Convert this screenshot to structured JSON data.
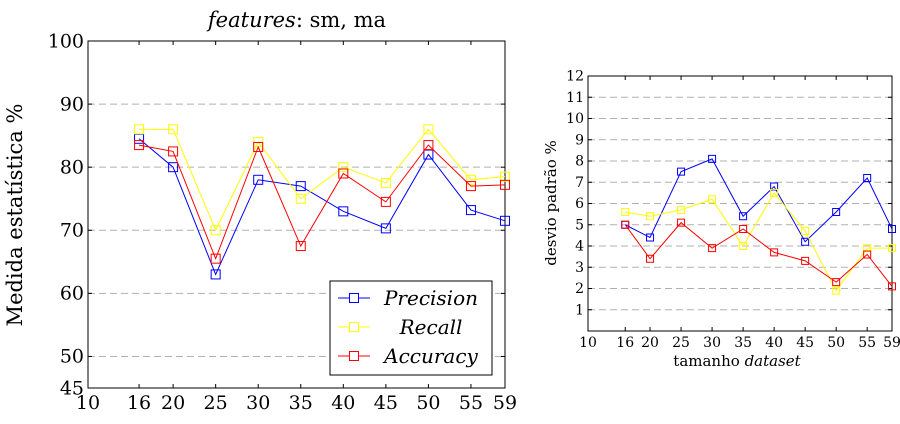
{
  "chart_data": [
    {
      "type": "line",
      "title_em": "features",
      "title_rest": ": sm, ma",
      "ylabel": "Medida estatística %",
      "xlabel": "",
      "x": [
        16,
        20,
        25,
        30,
        35,
        40,
        45,
        50,
        55,
        59
      ],
      "xticks": [
        10,
        16,
        20,
        25,
        30,
        35,
        40,
        45,
        50,
        55,
        59
      ],
      "xlim": [
        10,
        59
      ],
      "yticks": [
        45,
        50,
        60,
        70,
        80,
        90,
        100
      ],
      "ylim": [
        45,
        100
      ],
      "grid": "horizontal dashed",
      "legend_position": "bottom-right",
      "series": [
        {
          "name": "Precision",
          "color": "#0000ff",
          "values": [
            84.5,
            80.0,
            63.0,
            78.0,
            77.0,
            73.0,
            70.3,
            82.0,
            73.2,
            71.5
          ]
        },
        {
          "name": "Recall",
          "color": "#ffff00",
          "values": [
            86.0,
            86.0,
            70.0,
            84.0,
            75.0,
            80.0,
            77.5,
            86.0,
            78.0,
            78.5
          ]
        },
        {
          "name": "Accuracy",
          "color": "#ff0000",
          "values": [
            83.5,
            82.5,
            65.5,
            83.2,
            67.5,
            79.0,
            74.5,
            83.5,
            77.0,
            77.2
          ]
        }
      ]
    },
    {
      "type": "line",
      "title": "",
      "ylabel": "desvio padrão %",
      "xlabel_plain": "tamanho ",
      "xlabel_em": "dataset",
      "x": [
        16,
        20,
        25,
        30,
        35,
        40,
        45,
        50,
        55,
        59
      ],
      "xticks": [
        10,
        16,
        20,
        25,
        30,
        35,
        40,
        45,
        50,
        55,
        59
      ],
      "xlim": [
        10,
        59
      ],
      "yticks": [
        1,
        2,
        3,
        4,
        5,
        6,
        7,
        8,
        9,
        10,
        11,
        12
      ],
      "ylim": [
        0,
        12
      ],
      "grid": "horizontal dashed",
      "series": [
        {
          "color": "#0000ff",
          "values": [
            5.0,
            4.4,
            7.5,
            8.1,
            5.4,
            6.8,
            4.2,
            5.6,
            7.2,
            4.8
          ]
        },
        {
          "color": "#ffff00",
          "values": [
            5.6,
            5.4,
            5.7,
            6.2,
            4.0,
            6.5,
            4.7,
            1.9,
            3.9,
            3.9
          ]
        },
        {
          "color": "#ff0000",
          "values": [
            5.0,
            3.4,
            5.1,
            3.9,
            4.8,
            3.7,
            3.3,
            2.3,
            3.6,
            2.1
          ]
        }
      ]
    }
  ]
}
